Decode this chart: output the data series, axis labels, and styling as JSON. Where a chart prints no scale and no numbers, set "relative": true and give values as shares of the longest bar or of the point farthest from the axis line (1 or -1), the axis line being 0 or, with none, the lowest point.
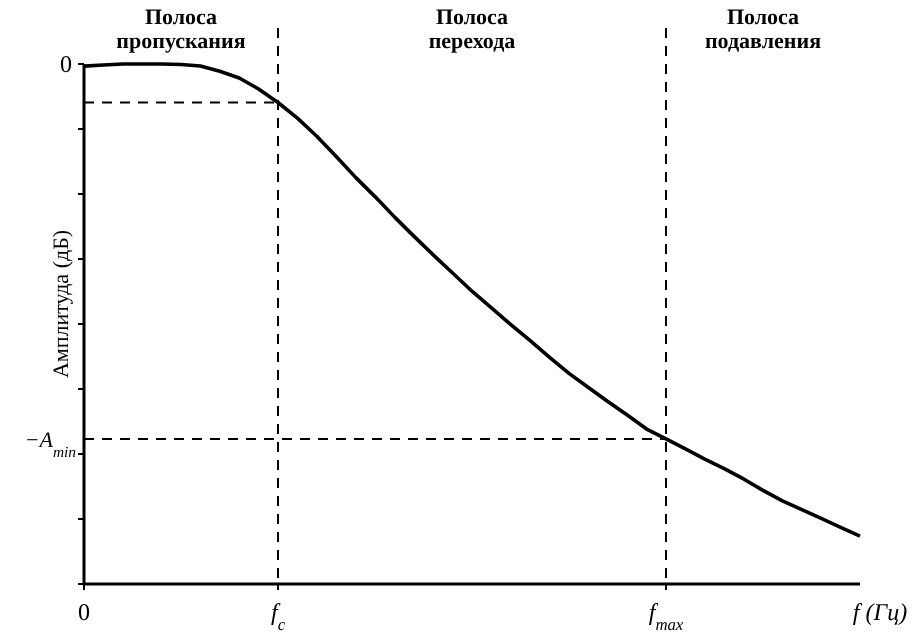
{
  "chart_data": {
    "type": "line",
    "relative": true,
    "xlabel": "f (Гц)",
    "ylabel": "Амплитуда (дБ)",
    "categories": [
      "0",
      null,
      null,
      null,
      null,
      null,
      null,
      null,
      null,
      null,
      "f$_{c}$",
      null,
      null,
      null,
      null,
      null,
      null,
      null,
      null,
      null,
      null,
      null,
      null,
      null,
      null,
      null,
      null,
      null,
      null,
      null,
      "f$_{max}$",
      null,
      null,
      null,
      null,
      null,
      null,
      null,
      null,
      null,
      null
    ],
    "series": [
      {
        "color": "#000000",
        "values": [
          0.996,
          0.998,
          1,
          1,
          1,
          0.999,
          0.996,
          0.986,
          0.973,
          0.952,
          0.926,
          0.896,
          0.861,
          0.822,
          0.782,
          0.745,
          0.706,
          0.669,
          0.633,
          0.598,
          0.563,
          0.531,
          0.499,
          0.468,
          0.436,
          0.405,
          0.378,
          0.351,
          0.325,
          0.298,
          0.279,
          0.26,
          0.24,
          0.222,
          0.202,
          0.18,
          0.16,
          0.143,
          0.126,
          0.109,
          0.092
        ]
      }
    ],
    "ref_lines": [
      {
        "axis": "x",
        "value": "f$_{c}$",
        "label": null,
        "line_style": "dashed"
      },
      {
        "axis": "x",
        "value": "f$_{max}$",
        "label": null,
        "line_style": "dashed"
      },
      {
        "axis": "y",
        "value": 0.926,
        "label": null,
        "line_style": "dashed"
      },
      {
        "axis": "y",
        "value": 0.279,
        "label": "−A$_{min}$",
        "line_style": "dashed"
      }
    ],
    "annotations": [
      "0",
      "Полоса пропускания",
      "Полоса перехода",
      "Полоса подавления"
    ],
    "line_style": "solid"
  }
}
